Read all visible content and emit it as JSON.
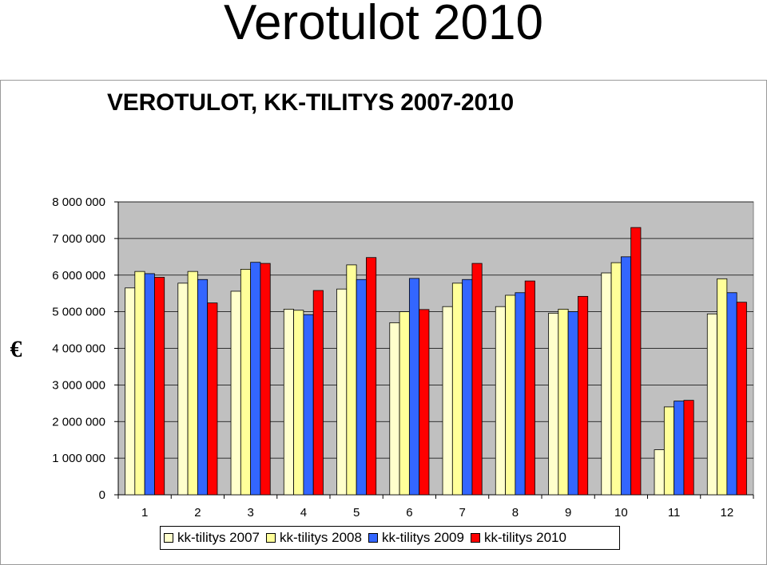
{
  "page": {
    "title": "Verotulot 2010"
  },
  "chart_data": {
    "type": "bar",
    "title": "VEROTULOT, KK-TILITYS 2007-2010",
    "ylabel": "€",
    "xlabel": "",
    "ylim": [
      0,
      8000000
    ],
    "yticks": [
      0,
      1000000,
      2000000,
      3000000,
      4000000,
      5000000,
      6000000,
      7000000,
      8000000
    ],
    "ytick_labels": [
      "0",
      "1 000 000",
      "2 000 000",
      "3 000 000",
      "4 000 000",
      "5 000 000",
      "6 000 000",
      "7 000 000",
      "8 000 000"
    ],
    "categories": [
      "1",
      "2",
      "3",
      "4",
      "5",
      "6",
      "7",
      "8",
      "9",
      "10",
      "11",
      "12"
    ],
    "grid": true,
    "legend_position": "bottom",
    "series": [
      {
        "name": "kk-tilitys 2007",
        "color": "#FFFFCC",
        "values": [
          5650000,
          5780000,
          5560000,
          5070000,
          5620000,
          4700000,
          5140000,
          5140000,
          4960000,
          6060000,
          1230000,
          4940000
        ]
      },
      {
        "name": "kk-tilitys 2008",
        "color": "#FFFF99",
        "values": [
          6100000,
          6100000,
          6160000,
          5040000,
          6280000,
          5000000,
          5780000,
          5450000,
          5070000,
          6340000,
          2400000,
          5900000
        ]
      },
      {
        "name": "kk-tilitys 2009",
        "color": "#3366FF",
        "values": [
          6040000,
          5880000,
          6350000,
          4920000,
          5880000,
          5910000,
          5880000,
          5520000,
          5000000,
          6500000,
          2560000,
          5520000
        ]
      },
      {
        "name": "kk-tilitys 2010",
        "color": "#FF0000",
        "values": [
          5940000,
          5240000,
          6320000,
          5580000,
          6480000,
          5060000,
          6320000,
          5840000,
          5420000,
          7300000,
          2580000,
          5260000
        ]
      }
    ]
  }
}
